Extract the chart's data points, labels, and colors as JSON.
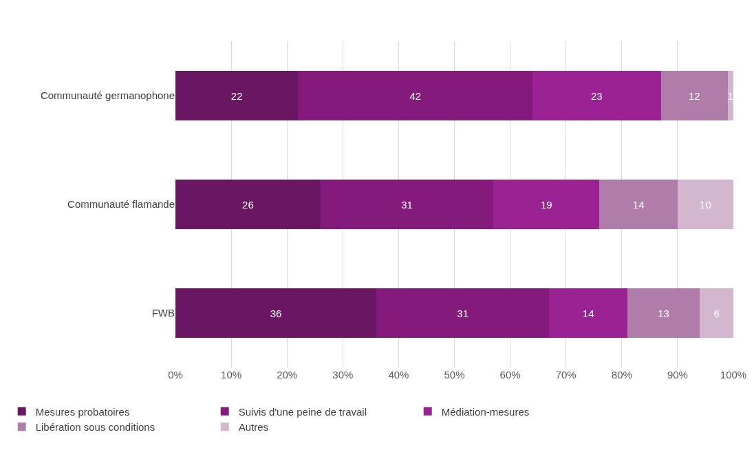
{
  "chart_data": {
    "type": "bar",
    "orientation": "horizontal",
    "stacked": true,
    "categories": [
      "Communauté germanophone",
      "Communauté flamande",
      "FWB"
    ],
    "series": [
      {
        "name": "Mesures probatoires",
        "color": "#6a1763",
        "values": [
          22,
          26,
          36
        ]
      },
      {
        "name": "Suivis d'une peine de travail",
        "color": "#841a7c",
        "values": [
          42,
          31,
          31
        ]
      },
      {
        "name": "Médiation-mesures",
        "color": "#9a2293",
        "values": [
          23,
          19,
          14
        ]
      },
      {
        "name": "Libération sous conditions",
        "color": "#b07dab",
        "values": [
          12,
          14,
          13
        ]
      },
      {
        "name": "Autres",
        "color": "#d3b7cf",
        "values": [
          1,
          10,
          6
        ]
      }
    ],
    "xlim": [
      0,
      100
    ],
    "xticks": [
      {
        "value": 0,
        "label": "0%"
      },
      {
        "value": 10,
        "label": "10%"
      },
      {
        "value": 20,
        "label": "20%"
      },
      {
        "value": 30,
        "label": "30%"
      },
      {
        "value": 40,
        "label": "40%"
      },
      {
        "value": 50,
        "label": "50%"
      },
      {
        "value": 60,
        "label": "60%"
      },
      {
        "value": 70,
        "label": "70%"
      },
      {
        "value": 80,
        "label": "80%"
      },
      {
        "value": 90,
        "label": "90%"
      },
      {
        "value": 100,
        "label": "100%"
      }
    ],
    "grid": "x",
    "legend": "bottom",
    "data_labels": true
  }
}
